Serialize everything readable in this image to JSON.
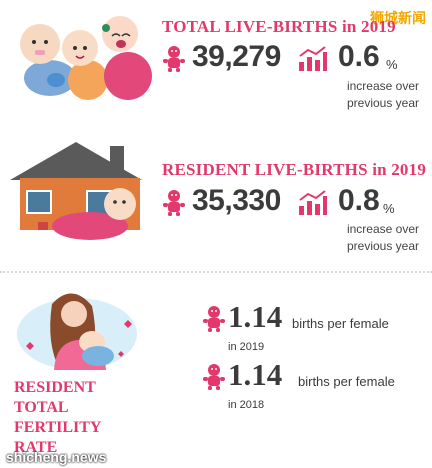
{
  "watermarks": {
    "top_right": "狮城新闻",
    "bottom_left": "shicheng.news"
  },
  "total": {
    "heading": "TOTAL LIVE-BIRTHS in 2019",
    "count": "39,279",
    "increase_value": "0.6",
    "increase_unit": "%",
    "increase_note_line1": "increase over",
    "increase_note_line2": "previous year"
  },
  "resident": {
    "heading": "RESIDENT LIVE-BIRTHS in 2019",
    "count": "35,330",
    "increase_value": "0.8",
    "increase_unit": "%",
    "increase_note_line1": "increase over",
    "increase_note_line2": "previous year"
  },
  "fertility": {
    "title_line1": "RESIDENT",
    "title_line2": "TOTAL",
    "title_line3": "FERTILITY",
    "title_line4": "RATE",
    "rows": [
      {
        "value": "1.14",
        "unit": "births per female",
        "year": "in 2019"
      },
      {
        "value": "1.14",
        "unit": "births per female",
        "year": "in 2018"
      }
    ]
  },
  "colors": {
    "accent": "#e3386b",
    "text": "#3b3b3b",
    "roof": "#5a5a5a",
    "wall": "#e07b3c"
  },
  "icons": [
    "babies-illustration",
    "house-baby-illustration",
    "mother-baby-illustration",
    "baby-icon",
    "growth-chart-icon"
  ]
}
